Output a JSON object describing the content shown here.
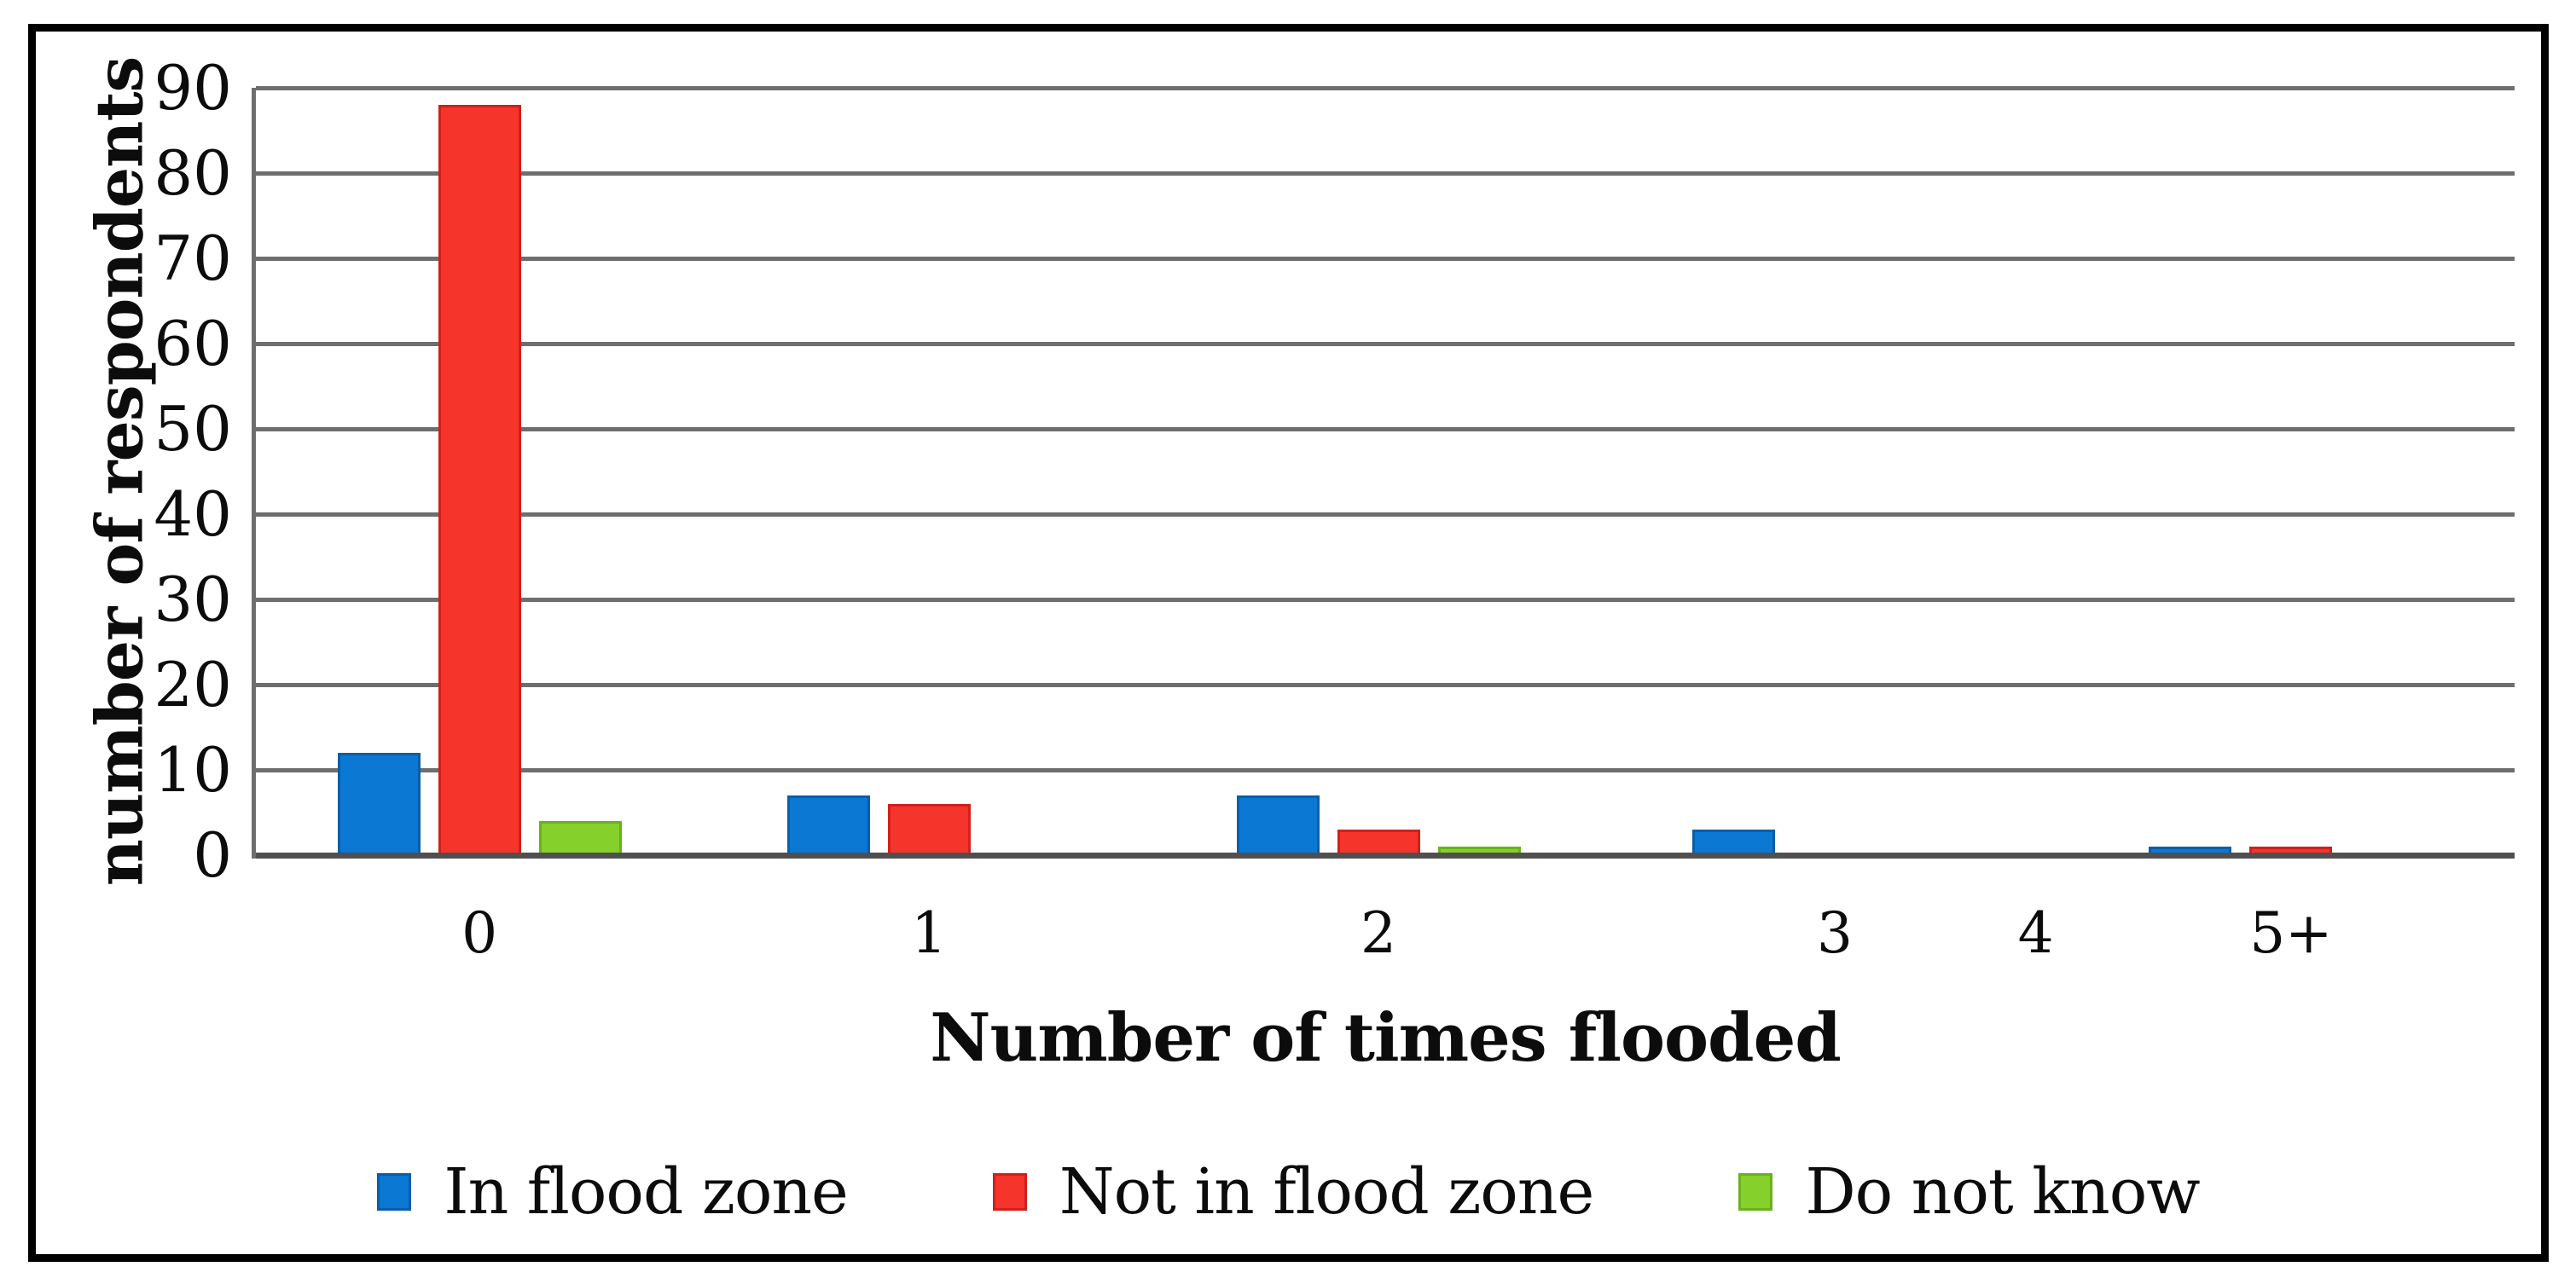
{
  "chart_data": {
    "type": "bar",
    "categories": [
      "0",
      "1",
      "2",
      "3",
      "4",
      "5+"
    ],
    "series": [
      {
        "name": "In flood zone",
        "color": "#0b78d4",
        "edge_color": "#0a5ea9",
        "values": [
          12,
          7,
          7,
          3,
          0,
          1
        ]
      },
      {
        "name": "Not in flood zone",
        "color": "#f5342c",
        "edge_color": "#d21f1a",
        "values": [
          88,
          6,
          3,
          0,
          0,
          1
        ]
      },
      {
        "name": "Do not know",
        "color": "#86d02b",
        "edge_color": "#68b31c",
        "values": [
          4,
          0,
          1,
          0,
          0,
          0
        ]
      }
    ],
    "title": "",
    "xlabel": "Number of times flooded",
    "ylabel": "number of respondents",
    "ylim": [
      0,
      90
    ],
    "ytick_step": 10,
    "yticks": [
      0,
      10,
      20,
      30,
      40,
      50,
      60,
      70,
      80,
      90
    ],
    "grid": true,
    "legend_position": "bottom",
    "layout_hints": {
      "category_centers_pct": [
        9.9,
        29.8,
        49.7,
        69.9,
        78.8,
        90.1
      ],
      "grid_color": "#6e6e6e",
      "baseline_color": "#4f4f4f",
      "frame_color": "#000000"
    }
  }
}
